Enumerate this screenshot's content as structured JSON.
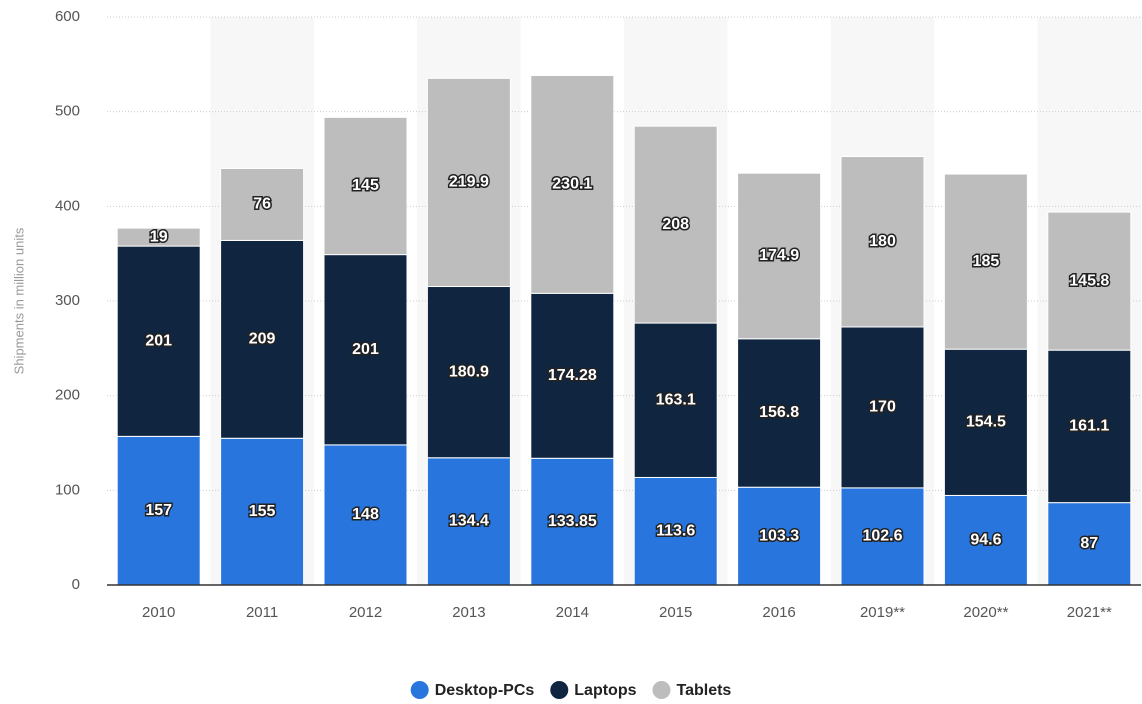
{
  "chart_data": {
    "type": "stacked-bar",
    "y_label": "Shipments in million units",
    "categories": [
      "2010",
      "2011",
      "2012",
      "2013",
      "2014",
      "2015",
      "2016",
      "2019**",
      "2020**",
      "2021**"
    ],
    "series": [
      {
        "name": "Desktop-PCs",
        "color": "#2876dd",
        "values": [
          157,
          155,
          148,
          134.4,
          133.85,
          113.6,
          103.3,
          102.6,
          94.6,
          87
        ]
      },
      {
        "name": "Laptops",
        "color": "#0f2540",
        "values": [
          201,
          209,
          201,
          180.9,
          174.28,
          163.1,
          156.8,
          170,
          154.5,
          161.1
        ]
      },
      {
        "name": "Tablets",
        "color": "#bdbdbd",
        "values": [
          19,
          76,
          145,
          219.9,
          230.1,
          208,
          174.9,
          180,
          185,
          145.8
        ]
      }
    ],
    "ylim": [
      0,
      600
    ],
    "yticks": [
      0,
      100,
      200,
      300,
      400,
      500,
      600
    ],
    "grid": true
  }
}
